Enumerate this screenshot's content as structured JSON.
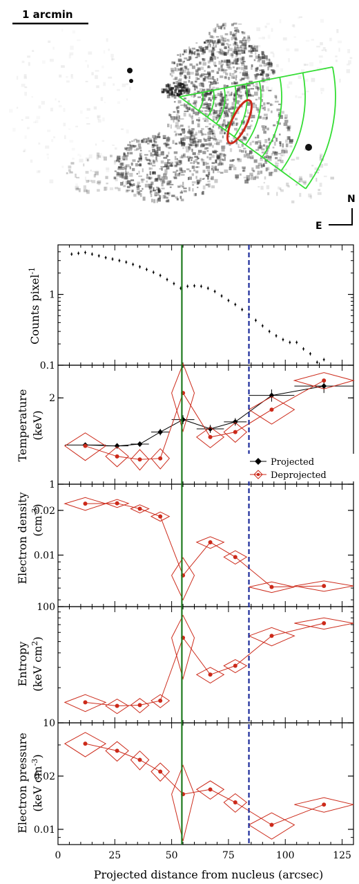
{
  "image": {
    "scale_label": "1 arcmin",
    "compass_north": "N",
    "compass_east": "E",
    "colors": {
      "sectors": "#33dd33",
      "ellipse": "#cc2a1a",
      "emission": "#1a1a1a"
    }
  },
  "chart_data": {
    "type": "scatter",
    "xlabel": "Projected distance from nucleus (arcsec)",
    "xlim": [
      0,
      130
    ],
    "xticks": [
      0,
      25,
      50,
      75,
      100,
      125
    ],
    "vlines": [
      {
        "x": 54.5,
        "style": "solid",
        "color": "#1f7a1f"
      },
      {
        "x": 84,
        "style": "dashed",
        "color": "#1a2a9a"
      }
    ],
    "panels": [
      {
        "id": "counts",
        "ylabel": "Counts pixel",
        "ylabel_sup": "-1",
        "yscale": "log",
        "ylim": [
          0.1,
          5
        ],
        "yticks": [
          {
            "value": 0.1,
            "label": "0.1"
          },
          {
            "value": 1,
            "label": "1"
          }
        ],
        "series": [
          {
            "color": "#000000",
            "marker": "cross",
            "x": [
              6,
              9,
              12,
              15,
              18,
              21,
              24,
              27,
              30,
              33,
              36,
              39,
              42,
              45,
              48,
              51,
              54,
              57,
              60,
              63,
              66,
              69,
              72,
              75,
              78,
              81,
              84,
              87,
              90,
              93,
              96,
              99,
              102,
              105,
              108,
              111,
              114,
              117
            ],
            "y": [
              3.7,
              3.8,
              3.9,
              3.7,
              3.5,
              3.3,
              3.15,
              3.0,
              2.85,
              2.65,
              2.45,
              2.25,
              2.05,
              1.85,
              1.62,
              1.42,
              1.22,
              1.3,
              1.32,
              1.3,
              1.22,
              1.1,
              0.95,
              0.82,
              0.72,
              0.61,
              0.52,
              0.43,
              0.36,
              0.3,
              0.26,
              0.23,
              0.21,
              0.21,
              0.17,
              0.145,
              0.11,
              0.12
            ]
          }
        ]
      },
      {
        "id": "temperature",
        "ylabel": "Temperature",
        "ylabel_unit": "(keV)",
        "yscale": "log",
        "ylim": [
          1,
          2.6
        ],
        "yticks": [
          {
            "value": 1,
            "label": "1"
          },
          {
            "value": 2,
            "label": "2"
          }
        ],
        "legend": {
          "location": "bottom-right",
          "entries": [
            "Projected",
            "Deprojected"
          ]
        },
        "series": [
          {
            "name": "Projected",
            "color": "#000000",
            "marker": "diamond",
            "x": [
              12,
              26,
              36,
              45,
              55,
              67,
              78,
              94,
              117
            ],
            "y": [
              1.37,
              1.36,
              1.38,
              1.52,
              1.68,
              1.56,
              1.65,
              2.04,
              2.2
            ],
            "xerr": [
              9,
              5,
              4,
              4,
              5,
              6,
              5,
              10,
              13
            ],
            "yerr": [
              0.02,
              0.03,
              0.03,
              0.04,
              0.06,
              0.05,
              0.05,
              0.1,
              0.12
            ]
          },
          {
            "name": "Deprojected",
            "color": "#cc2a1a",
            "marker": "diamond",
            "x": [
              12,
              26,
              36,
              45,
              55,
              67,
              78,
              94,
              117
            ],
            "y": [
              1.36,
              1.25,
              1.22,
              1.23,
              2.08,
              1.46,
              1.52,
              1.82,
              2.3
            ],
            "xerr": [
              9,
              5,
              4,
              4,
              5,
              6,
              5,
              10,
              13
            ],
            "yerr": [
              0.15,
              0.1,
              0.1,
              0.1,
              0.55,
              0.12,
              0.12,
              0.2,
              0.15
            ]
          }
        ]
      },
      {
        "id": "density",
        "ylabel": "Electron density",
        "ylabel_unit": "(cm",
        "ylabel_unit_sup": "-3",
        "ylabel_unit_end": ")",
        "yscale": "log",
        "ylim": [
          0.0045,
          0.03
        ],
        "yticks": [
          {
            "value": 0.01,
            "label": "0.01"
          },
          {
            "value": 0.02,
            "label": "0.02"
          }
        ],
        "series": [
          {
            "color": "#cc2a1a",
            "marker": "diamond",
            "x": [
              12,
              26,
              36,
              45,
              55,
              67,
              78,
              94,
              117
            ],
            "y": [
              0.0222,
              0.0223,
              0.0205,
              0.0182,
              0.0073,
              0.0122,
              0.0097,
              0.0061,
              0.0062
            ],
            "xerr": [
              9,
              5,
              4,
              4,
              5,
              6,
              5,
              10,
              13
            ],
            "yerr": [
              0.0022,
              0.0014,
              0.0013,
              0.0013,
              0.0023,
              0.0011,
              0.001,
              0.0005,
              0.0005
            ]
          }
        ]
      },
      {
        "id": "entropy",
        "ylabel": "Entropy",
        "ylabel_unit": "(keV cm",
        "ylabel_unit_sup": "2",
        "ylabel_unit_end": ")",
        "yscale": "log",
        "ylim": [
          10,
          100
        ],
        "yticks": [
          {
            "value": 10,
            "label": "10"
          },
          {
            "value": 100,
            "label": "100"
          }
        ],
        "series": [
          {
            "color": "#cc2a1a",
            "marker": "diamond",
            "x": [
              12,
              26,
              36,
              45,
              55,
              67,
              78,
              94,
              117
            ],
            "y": [
              15,
              14,
              14.2,
              15.5,
              54,
              26,
              31,
              56,
              72
            ],
            "xerr": [
              9,
              5,
              4,
              4,
              5,
              6,
              5,
              10,
              13
            ],
            "yerr": [
              2.5,
              2,
              2,
              2,
              30,
              4,
              4,
              10,
              8
            ]
          }
        ]
      },
      {
        "id": "pressure",
        "ylabel": "Electron pressure",
        "ylabel_unit": "(keV cm",
        "ylabel_unit_sup": "-3",
        "ylabel_unit_end": ")",
        "yscale": "log",
        "ylim": [
          0.0082,
          0.04
        ],
        "yticks": [
          {
            "value": 0.01,
            "label": "0.01"
          },
          {
            "value": 0.02,
            "label": "0.02"
          }
        ],
        "series": [
          {
            "color": "#cc2a1a",
            "marker": "diamond",
            "x": [
              12,
              26,
              36,
              45,
              55,
              67,
              78,
              94,
              117
            ],
            "y": [
              0.0305,
              0.0278,
              0.0247,
              0.0212,
              0.0158,
              0.0168,
              0.0142,
              0.0106,
              0.0138
            ],
            "xerr": [
              9,
              5,
              4,
              4,
              5,
              6,
              5,
              10,
              13
            ],
            "yerr": [
              0.0048,
              0.0035,
              0.003,
              0.0025,
              0.0072,
              0.002,
              0.0017,
              0.0018,
              0.0013
            ]
          }
        ]
      }
    ]
  }
}
